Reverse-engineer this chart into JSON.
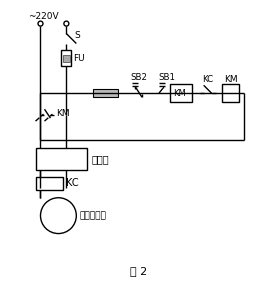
{
  "bg": "#ffffff",
  "lc": "#000000",
  "label_220v": "~220V",
  "label_S": "S",
  "label_FU": "FU",
  "label_SB2": "SB2",
  "label_SB1": "SB1",
  "label_KC": "KC",
  "label_KM": "KM",
  "label_ctrl": "控制器",
  "label_KC2": "KC",
  "label_clutch": "电磁离合器",
  "label_fig": "图 2",
  "label_KM_lower": "KM"
}
